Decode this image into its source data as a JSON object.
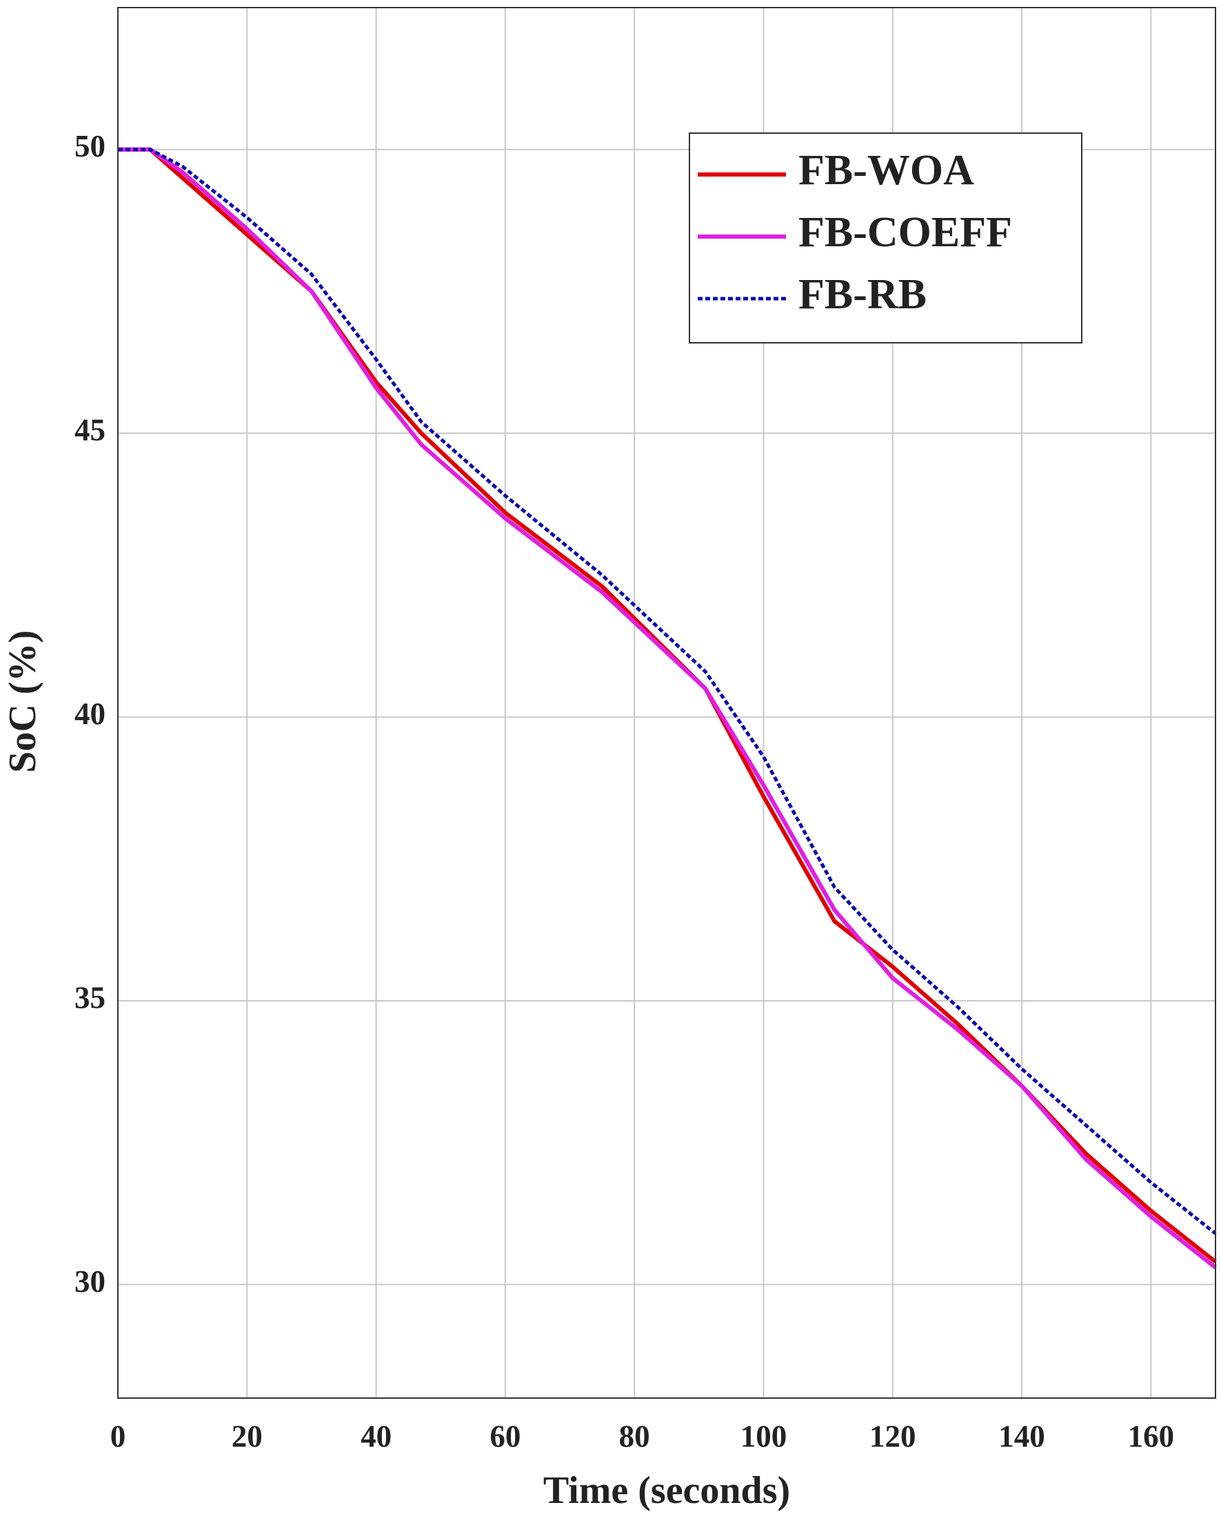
{
  "chart_data": {
    "type": "line",
    "x_label": "Time (seconds)",
    "y_label": "SoC (%)",
    "x": [
      0,
      5,
      10,
      20,
      30,
      40,
      47,
      60,
      75,
      91,
      100,
      111,
      120,
      130,
      140,
      150,
      160,
      170
    ],
    "series": [
      {
        "name": "FB-WOA",
        "color": "#e00000",
        "values": [
          50,
          50,
          49.5,
          48.5,
          47.5,
          45.9,
          45.0,
          43.6,
          42.3,
          40.5,
          38.6,
          36.4,
          35.6,
          34.6,
          33.5,
          32.3,
          31.3,
          30.4
        ]
      },
      {
        "name": "FB-COEFF",
        "color": "#e020e0",
        "values": [
          50,
          50,
          49.6,
          48.6,
          47.5,
          45.8,
          44.8,
          43.5,
          42.2,
          40.5,
          38.8,
          36.6,
          35.4,
          34.5,
          33.5,
          32.2,
          31.2,
          30.3
        ]
      },
      {
        "name": "FB-RB",
        "color": "#0a0ab0",
        "dashed": true,
        "values": [
          50,
          50,
          49.7,
          48.8,
          47.8,
          46.3,
          45.2,
          43.9,
          42.5,
          40.8,
          39.3,
          37.0,
          35.9,
          34.9,
          33.8,
          32.8,
          31.8,
          30.9
        ]
      }
    ],
    "xlim": [
      0,
      170
    ],
    "xticks": [
      0,
      20,
      40,
      60,
      80,
      100,
      120,
      140,
      160
    ],
    "ylim": [
      28,
      52.5
    ],
    "yticks": [
      30,
      35,
      40,
      45,
      50
    ],
    "grid": true,
    "legend": "upper right"
  }
}
